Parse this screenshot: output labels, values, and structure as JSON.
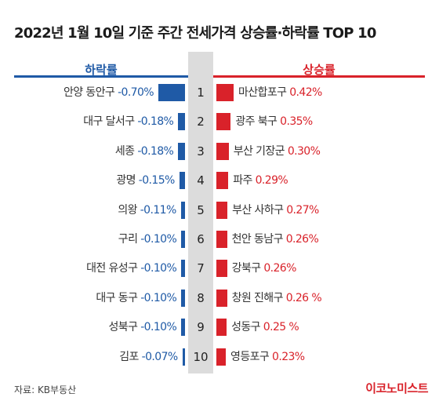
{
  "title": "2022년 1월 10일 기준 주간 전세가격 상승률·하락률 TOP 10",
  "headers": {
    "fall": "하락률",
    "rise": "상승률"
  },
  "source": "자료: KB부동산",
  "logo": "이코노미스트",
  "colors": {
    "fall": "#1f5aa6",
    "rise": "#d9222a",
    "rank_column": "#dcdcdc"
  },
  "chart_data": [
    {
      "type": "bar",
      "title": "하락률",
      "categories": [
        "안양 동안구",
        "대구 달서구",
        "세종",
        "광명",
        "의왕",
        "구리",
        "대전 유성구",
        "대구 동구",
        "성북구",
        "김포"
      ],
      "values": [
        -0.7,
        -0.18,
        -0.18,
        -0.15,
        -0.11,
        -0.1,
        -0.1,
        -0.1,
        -0.1,
        -0.07
      ],
      "labels": [
        "-0.70%",
        "-0.18%",
        "-0.18%",
        "-0.15%",
        "-0.11%",
        "-0.10%",
        "-0.10%",
        "-0.10%",
        "-0.10%",
        "-0.07%"
      ],
      "ranks": [
        "1",
        "2",
        "3",
        "4",
        "5",
        "6",
        "7",
        "8",
        "9",
        "10"
      ]
    },
    {
      "type": "bar",
      "title": "상승률",
      "categories": [
        "마산합포구",
        "광주 북구",
        "부산 기장군",
        "파주",
        "부산 사하구",
        "천안 동남구",
        "강북구",
        "창원 진해구",
        "성동구",
        "영등포구"
      ],
      "values": [
        0.42,
        0.35,
        0.3,
        0.29,
        0.27,
        0.26,
        0.26,
        0.26,
        0.25,
        0.23
      ],
      "labels": [
        "0.42%",
        "0.35%",
        "0.30%",
        "0.29%",
        "0.27%",
        "0.26%",
        "0.26%",
        "0.26 %",
        "0.25 %",
        "0.23%"
      ],
      "ranks": [
        "1",
        "2",
        "3",
        "4",
        "5",
        "6",
        "7",
        "8",
        "9",
        "10"
      ]
    }
  ]
}
